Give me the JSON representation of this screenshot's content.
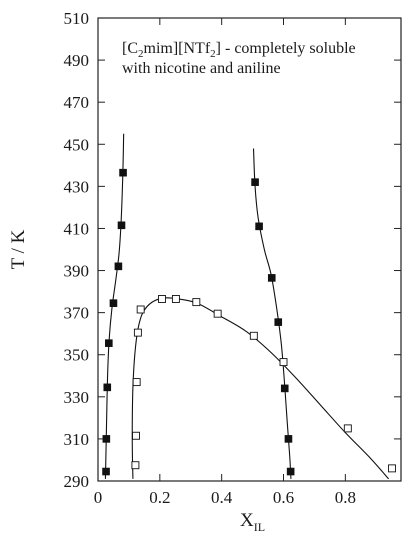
{
  "chart_data": {
    "type": "scatter",
    "title": "",
    "annotation": {
      "line1_prefix": "[C",
      "line1_sub1": "2",
      "line1_mid": "mim][NTf",
      "line1_sub2": "2",
      "line1_suffix": "] - completely soluble",
      "line2": "with  nicotine and aniline"
    },
    "xlabel": "X",
    "xlabel_sub": "IL",
    "ylabel": "T / K",
    "xlim": [
      0,
      0.98
    ],
    "ylim": [
      290,
      510
    ],
    "xticks": [
      0,
      0.2,
      0.4,
      0.6,
      0.8
    ],
    "xtick_labels": [
      "0",
      "0.2",
      "0.4",
      "0.6",
      "0.8"
    ],
    "yticks": [
      290,
      310,
      330,
      350,
      370,
      390,
      410,
      430,
      450,
      470,
      490,
      510
    ],
    "ytick_labels": [
      "290",
      "310",
      "330",
      "350",
      "370",
      "390",
      "410",
      "430",
      "450",
      "470",
      "490",
      "510"
    ],
    "grid": false,
    "legend": "none",
    "series": [
      {
        "marker": "filled-square",
        "color": "#111111",
        "points": [
          [
            0.026,
            294.5
          ],
          [
            0.027,
            310.0
          ],
          [
            0.03,
            334.5
          ],
          [
            0.035,
            355.5
          ],
          [
            0.05,
            374.5
          ],
          [
            0.066,
            392.0
          ],
          [
            0.076,
            411.5
          ],
          [
            0.081,
            436.5
          ]
        ],
        "curve": [
          [
            0.024,
            291
          ],
          [
            0.026,
            305
          ],
          [
            0.028,
            320
          ],
          [
            0.031,
            340
          ],
          [
            0.036,
            357
          ],
          [
            0.045,
            372
          ],
          [
            0.058,
            386
          ],
          [
            0.068,
            398
          ],
          [
            0.074,
            411
          ],
          [
            0.078,
            425
          ],
          [
            0.081,
            440
          ],
          [
            0.083,
            455
          ]
        ]
      },
      {
        "marker": "filled-square",
        "color": "#111111",
        "points": [
          [
            0.508,
            432.0
          ],
          [
            0.521,
            411.0
          ],
          [
            0.562,
            386.5
          ],
          [
            0.583,
            365.5
          ],
          [
            0.604,
            334.0
          ],
          [
            0.616,
            310.0
          ],
          [
            0.623,
            294.5
          ]
        ],
        "curve": [
          [
            0.503,
            448
          ],
          [
            0.508,
            430
          ],
          [
            0.518,
            415
          ],
          [
            0.538,
            400
          ],
          [
            0.56,
            388
          ],
          [
            0.578,
            372
          ],
          [
            0.593,
            355
          ],
          [
            0.603,
            337
          ],
          [
            0.612,
            318
          ],
          [
            0.62,
            302
          ],
          [
            0.624,
            291
          ]
        ]
      },
      {
        "marker": "open-square",
        "color": "#111111",
        "points": [
          [
            0.121,
            297.5
          ],
          [
            0.123,
            311.5
          ],
          [
            0.125,
            337.0
          ],
          [
            0.129,
            360.5
          ],
          [
            0.138,
            371.5
          ],
          [
            0.207,
            376.5
          ],
          [
            0.252,
            376.5
          ],
          [
            0.318,
            375.0
          ],
          [
            0.387,
            369.5
          ],
          [
            0.504,
            359.0
          ],
          [
            0.6,
            346.5
          ],
          [
            0.808,
            315.0
          ],
          [
            0.951,
            296.0
          ]
        ],
        "curve": [
          [
            0.113,
            291
          ],
          [
            0.111,
            305
          ],
          [
            0.111,
            320
          ],
          [
            0.113,
            335
          ],
          [
            0.119,
            350
          ],
          [
            0.129,
            362
          ],
          [
            0.145,
            370
          ],
          [
            0.175,
            375
          ],
          [
            0.215,
            377
          ],
          [
            0.26,
            376.5
          ],
          [
            0.32,
            374.5
          ],
          [
            0.4,
            368
          ],
          [
            0.48,
            361
          ],
          [
            0.56,
            351
          ],
          [
            0.64,
            339
          ],
          [
            0.72,
            326
          ],
          [
            0.8,
            313
          ],
          [
            0.88,
            301
          ],
          [
            0.94,
            291
          ]
        ]
      }
    ]
  }
}
